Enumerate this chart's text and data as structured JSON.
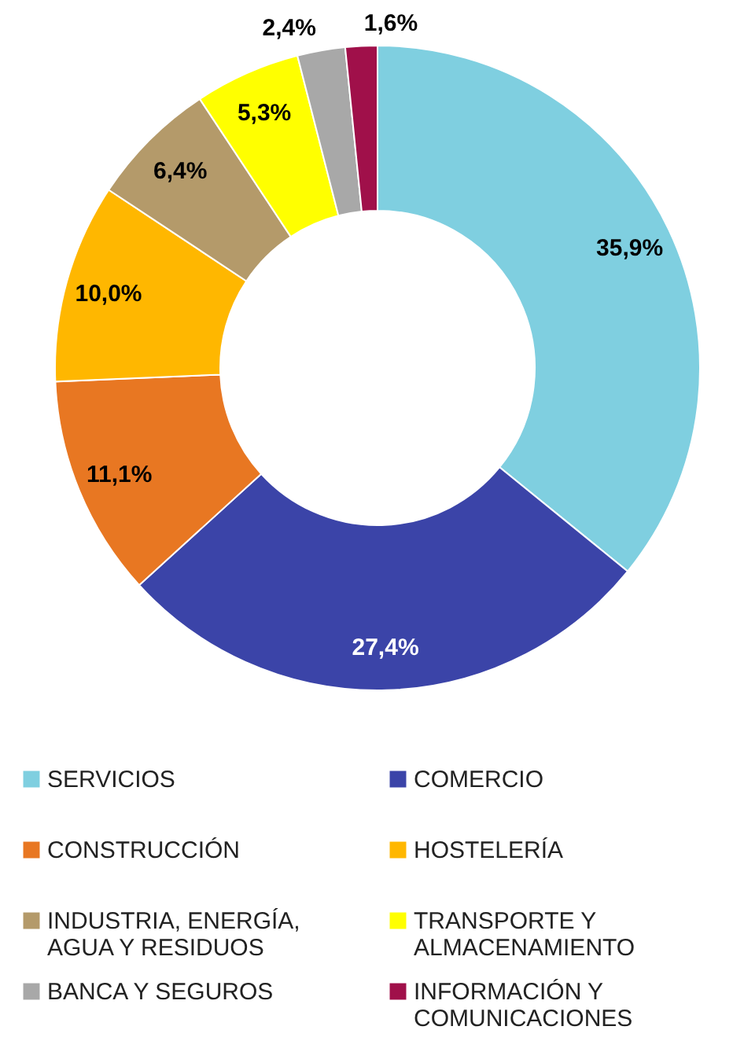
{
  "chart_data": {
    "type": "donut",
    "categories": [
      "SERVICIOS",
      "COMERCIO",
      "CONSTRUCCIÓN",
      "HOSTELERÍA",
      "INDUSTRIA, ENERGÍA, AGUA Y RESIDUOS",
      "TRANSPORTE Y ALMACENAMIENTO",
      "BANCA Y SEGUROS",
      "INFORMACIÓN Y COMUNICACIONES"
    ],
    "values": [
      35.9,
      27.4,
      11.1,
      10.0,
      6.4,
      5.3,
      2.4,
      1.6
    ],
    "value_labels": [
      "35,9%",
      "27,4%",
      "11,1%",
      "10,0%",
      "6,4%",
      "5,3%",
      "2,4%",
      "1,6%"
    ],
    "colors": [
      "#7fcfe0",
      "#3b44a8",
      "#e87722",
      "#ffb700",
      "#b49a6a",
      "#ffff00",
      "#a8a8a8",
      "#a0104a"
    ],
    "legend": "bottom"
  }
}
